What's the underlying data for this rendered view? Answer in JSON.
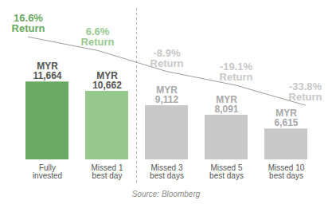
{
  "chart_data": {
    "type": "bar",
    "categories": [
      "Fully\ninvested",
      "Missed 1\nbest day",
      "Missed 3\nbest days",
      "Missed 5\nbest days",
      "Missed 10\nbest days"
    ],
    "values": [
      11664,
      10662,
      9112,
      8091,
      6615
    ],
    "value_labels": [
      "MYR\n11,664",
      "MYR\n10,662",
      "MYR\n9,112",
      "MYR\n8,091",
      "MYR\n6,615"
    ],
    "colors": [
      "#6aa964",
      "#97c98f",
      "#c8c8c8",
      "#c8c8c8",
      "#c8c8c8"
    ],
    "ylim": [
      3300,
      17000
    ],
    "data_labels": true,
    "tick_labels": "x",
    "returns": [
      16.6,
      6.6,
      -8.9,
      -19.1,
      -33.8
    ],
    "return_labels": [
      "16.6%\nReturn",
      "6.6%\nReturn",
      "-8.9%\nReturn",
      "-19.1%\nReturn",
      "-33.8%\nReturn"
    ],
    "y2lim": [
      -74,
      20
    ],
    "source": "Source: Bloomberg"
  }
}
